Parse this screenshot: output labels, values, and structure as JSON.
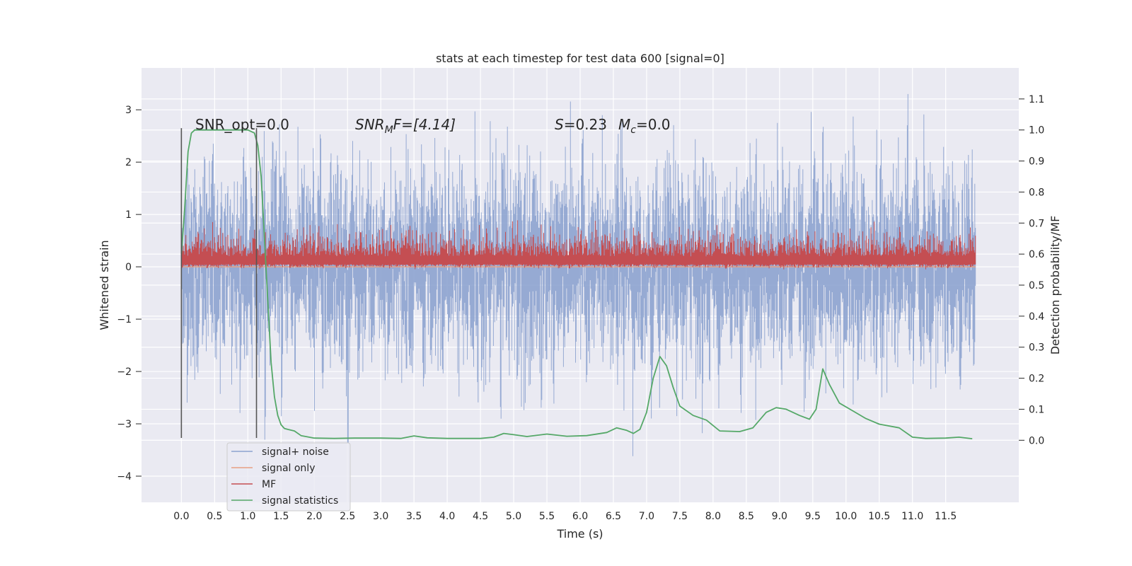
{
  "chart_data": {
    "type": "line",
    "title": "stats at each timestep for test data 600 [signal=0]",
    "xlabel": "Time (s)",
    "ylabel": "Whitened strain",
    "ylabel_right": "Detection probability/MF",
    "xlim": [
      -0.6,
      12.6
    ],
    "ylim": [
      -4.5,
      3.8
    ],
    "ylim_right": [
      -0.2,
      1.2
    ],
    "xticks": [
      0.0,
      0.5,
      1.0,
      1.5,
      2.0,
      2.5,
      3.0,
      3.5,
      4.0,
      4.5,
      5.0,
      5.5,
      6.0,
      6.5,
      7.0,
      7.5,
      8.0,
      8.5,
      9.0,
      9.5,
      10.0,
      10.5,
      11.0,
      11.5
    ],
    "xtick_labels": [
      "0.0",
      "0.5",
      "1.0",
      "1.5",
      "2.0",
      "2.5",
      "3.0",
      "3.5",
      "4.0",
      "4.5",
      "5.0",
      "5.5",
      "6.0",
      "6.5",
      "7.0",
      "7.5",
      "8.0",
      "8.5",
      "9.0",
      "9.5",
      "10.0",
      "10.5",
      "11.0",
      "11.5"
    ],
    "yticks_left": [
      -4,
      -3,
      -2,
      -1,
      0,
      1,
      2,
      3
    ],
    "ytick_labels_left": [
      "−4",
      "−3",
      "−2",
      "−1",
      "0",
      "1",
      "2",
      "3"
    ],
    "yticks_right": [
      0.0,
      0.1,
      0.2,
      0.3,
      0.4,
      0.5,
      0.6,
      0.7,
      0.8,
      0.9,
      1.0,
      1.1
    ],
    "ytick_labels_right": [
      "0.0",
      "0.1",
      "0.2",
      "0.3",
      "0.4",
      "0.5",
      "0.6",
      "0.7",
      "0.8",
      "0.9",
      "1.0",
      "1.1"
    ],
    "grid": true,
    "legend_placement": "lower-left",
    "annotations": {
      "snr_opt": "SNR_opt=0.0",
      "snr_mf_prefix": "SNR",
      "snr_mf_sub": "M",
      "snr_mf_suffix": "F=[4.14]",
      "s_label": "S",
      "s_value": "=0.23",
      "mc_label": "M",
      "mc_sub": "c",
      "mc_value": "=0.0"
    },
    "vertical_markers": {
      "x": [
        0.0,
        1.13
      ],
      "y_range": [
        -3.27,
        2.65
      ],
      "color": "#555555"
    },
    "series": [
      {
        "name": "signal+ noise",
        "color": "#8da3cf",
        "axis": "left",
        "kind": "noise_band",
        "x_range": [
          0.0,
          11.95
        ],
        "typical_range": [
          -1.5,
          1.5
        ],
        "extreme_min": -4.05,
        "extreme_max": 3.45
      },
      {
        "name": "signal only",
        "color": "#e8a083",
        "axis": "left",
        "kind": "flat",
        "x_range": [
          0.0,
          11.95
        ],
        "values": [
          0,
          0
        ]
      },
      {
        "name": "MF",
        "color": "#c44e52",
        "axis": "left",
        "kind": "noise_band",
        "x_range": [
          0.0,
          11.95
        ],
        "typical_range": [
          0.05,
          0.6
        ],
        "extreme_min": -0.05,
        "extreme_max": 1.0
      },
      {
        "name": "signal statistics",
        "color": "#55a868",
        "axis": "right",
        "kind": "line",
        "x": [
          0.0,
          0.05,
          0.1,
          0.15,
          0.2,
          0.3,
          0.5,
          0.8,
          1.0,
          1.1,
          1.15,
          1.2,
          1.25,
          1.3,
          1.35,
          1.4,
          1.45,
          1.5,
          1.55,
          1.6,
          1.7,
          1.8,
          2.0,
          2.3,
          2.6,
          3.0,
          3.3,
          3.5,
          3.7,
          4.0,
          4.5,
          4.7,
          4.85,
          5.0,
          5.2,
          5.5,
          5.8,
          6.1,
          6.4,
          6.55,
          6.7,
          6.8,
          6.9,
          7.0,
          7.1,
          7.2,
          7.3,
          7.4,
          7.5,
          7.7,
          7.9,
          8.1,
          8.4,
          8.6,
          8.8,
          8.95,
          9.1,
          9.3,
          9.45,
          9.55,
          9.65,
          9.75,
          9.9,
          10.1,
          10.3,
          10.5,
          10.8,
          11.0,
          11.2,
          11.5,
          11.7,
          11.9
        ],
        "values": [
          0.6,
          0.75,
          0.93,
          0.99,
          1.0,
          1.0,
          1.0,
          1.0,
          1.0,
          0.99,
          0.95,
          0.85,
          0.65,
          0.45,
          0.25,
          0.14,
          0.08,
          0.05,
          0.038,
          0.035,
          0.03,
          0.015,
          0.007,
          0.006,
          0.007,
          0.007,
          0.006,
          0.014,
          0.008,
          0.006,
          0.006,
          0.01,
          0.022,
          0.018,
          0.012,
          0.02,
          0.013,
          0.015,
          0.025,
          0.04,
          0.032,
          0.022,
          0.035,
          0.09,
          0.2,
          0.27,
          0.24,
          0.17,
          0.11,
          0.08,
          0.065,
          0.03,
          0.028,
          0.04,
          0.09,
          0.105,
          0.1,
          0.08,
          0.068,
          0.1,
          0.23,
          0.18,
          0.12,
          0.095,
          0.07,
          0.052,
          0.04,
          0.01,
          0.006,
          0.007,
          0.01,
          0.005
        ]
      }
    ]
  }
}
